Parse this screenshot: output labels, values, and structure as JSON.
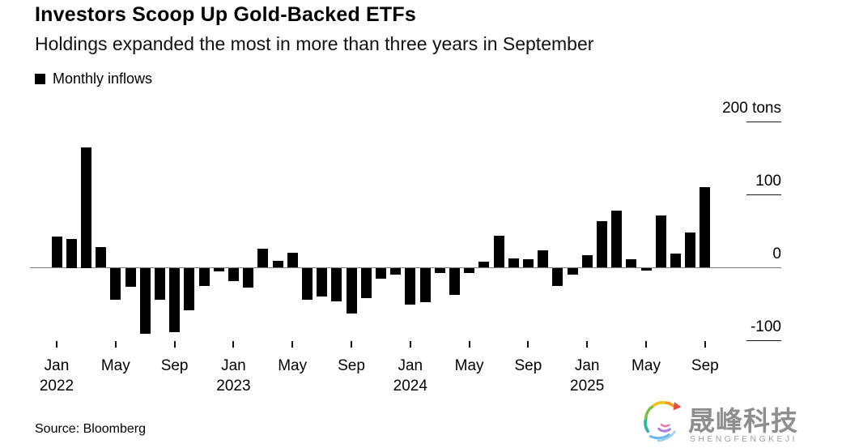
{
  "header": {
    "title": "Investors Scoop Up Gold-Backed ETFs",
    "subtitle": "Holdings expanded the most in more than three years in September",
    "legend": {
      "label": "Monthly inflows",
      "swatch_color": "#000000"
    }
  },
  "chart_data": {
    "type": "bar",
    "title": "Investors Scoop Up Gold-Backed ETFs",
    "series_name": "Monthly inflows",
    "unit": "tons",
    "bar_color": "#000000",
    "grid": false,
    "ylim": [
      -130,
      200
    ],
    "x": [
      "2022-01",
      "2022-02",
      "2022-03",
      "2022-04",
      "2022-05",
      "2022-06",
      "2022-07",
      "2022-08",
      "2022-09",
      "2022-10",
      "2022-11",
      "2022-12",
      "2023-01",
      "2023-02",
      "2023-03",
      "2023-04",
      "2023-05",
      "2023-06",
      "2023-07",
      "2023-08",
      "2023-09",
      "2023-10",
      "2023-11",
      "2023-12",
      "2024-01",
      "2024-02",
      "2024-03",
      "2024-04",
      "2024-05",
      "2024-06",
      "2024-07",
      "2024-08",
      "2024-09",
      "2024-10",
      "2024-11",
      "2024-12",
      "2025-01",
      "2025-02",
      "2025-03",
      "2025-04",
      "2025-05",
      "2025-06",
      "2025-07",
      "2025-08",
      "2025-09"
    ],
    "values": [
      43,
      40,
      165,
      28,
      -44,
      -26,
      -90,
      -44,
      -88,
      -58,
      -25,
      -5,
      -18,
      -27,
      26,
      9,
      21,
      -44,
      -39,
      -46,
      -63,
      -42,
      -15,
      -9,
      -50,
      -47,
      -7,
      -37,
      -7,
      8,
      44,
      13,
      12,
      24,
      -25,
      -9,
      17,
      64,
      78,
      12,
      -4,
      72,
      19,
      48,
      111
    ],
    "y_ticks": [
      {
        "value": 200,
        "label": "200 tons"
      },
      {
        "value": 100,
        "label": "100"
      },
      {
        "value": 0,
        "label": "0"
      },
      {
        "value": -100,
        "label": "-100"
      }
    ],
    "x_ticks": [
      {
        "index": 0,
        "label": "Jan",
        "year": "2022"
      },
      {
        "index": 4,
        "label": "May",
        "year": ""
      },
      {
        "index": 8,
        "label": "Sep",
        "year": ""
      },
      {
        "index": 12,
        "label": "Jan",
        "year": "2023"
      },
      {
        "index": 16,
        "label": "May",
        "year": ""
      },
      {
        "index": 20,
        "label": "Sep",
        "year": ""
      },
      {
        "index": 24,
        "label": "Jan",
        "year": "2024"
      },
      {
        "index": 28,
        "label": "May",
        "year": ""
      },
      {
        "index": 32,
        "label": "Sep",
        "year": ""
      },
      {
        "index": 36,
        "label": "Jan",
        "year": "2025"
      },
      {
        "index": 40,
        "label": "May",
        "year": ""
      },
      {
        "index": 44,
        "label": "Sep",
        "year": ""
      }
    ]
  },
  "footer": {
    "source": "Source: Bloomberg"
  },
  "watermark": {
    "brand_cn": "晟峰科技",
    "brand_en": "SHENGFENGKEJI"
  }
}
